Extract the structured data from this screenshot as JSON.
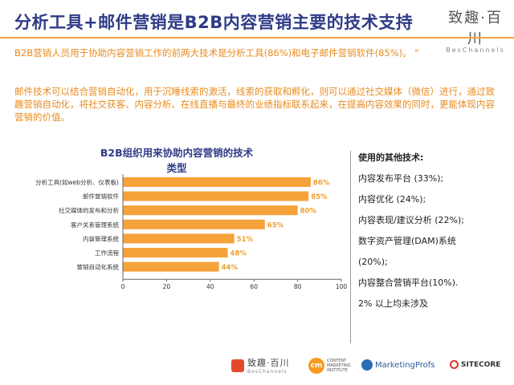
{
  "header": {
    "title": "分析工具+邮件营销是B2B内容营销主要的技术支持",
    "brand_name": "致趣·百川",
    "brand_sub": "BesChannels"
  },
  "paragraphs": {
    "p1": "B2B营销人员用于协助内容营销工作的前两大技术是分析工具(86%)和电子邮件营销软件(85%)。  \"",
    "p2": "邮件技术可以结合营销自动化，用于沉睡线索的激活，线索的获取和孵化，则可以通过社交媒体（微信）进行，通过致趣营销自动化，将社交获客、内容分析、在线直播与最终的业绩指标联系起来，在提高内容效果的同时，更能体现内容营销的价值。"
  },
  "chart_data": {
    "type": "bar",
    "orientation": "horizontal",
    "title": "B2B组织用来协助内容营销的技术类型",
    "categories": [
      "分析工具(如web分析、仪表板)",
      "邮件营销软件",
      "社交媒体的发布和分析",
      "客户关系管理系统",
      "内容管理系统",
      "工作流程",
      "营销自动化系统"
    ],
    "values": [
      86,
      85,
      80,
      65,
      51,
      48,
      44
    ],
    "value_labels": [
      "86%",
      "85%",
      "80%",
      "65%",
      "51%",
      "48%",
      "44%"
    ],
    "xlim": [
      0,
      100
    ],
    "xticks": [
      "0",
      "20",
      "40",
      "60",
      "80",
      "100"
    ],
    "bar_color": "#f5a23a",
    "label_color": "#f0a030"
  },
  "sidebar": {
    "title": "使用的其他技术:",
    "items": [
      "内容发布平台 (33%);",
      "内容优化 (24%);",
      "内容表现/建议分析 (22%);",
      "数字资产管理(DAM)系统",
      "(20%);",
      "内容整合营销平台(10%).",
      "2% 以上均未涉及"
    ]
  },
  "footer": {
    "logo1_name": "致趣·百川",
    "logo1_sub": "BesChannels",
    "logo2_mark": "cm",
    "logo2_lines": [
      "CONTENT",
      "MARKETING",
      "INSTITUTE"
    ],
    "logo3": "MarketingProfs",
    "logo4": "SITECORE"
  }
}
